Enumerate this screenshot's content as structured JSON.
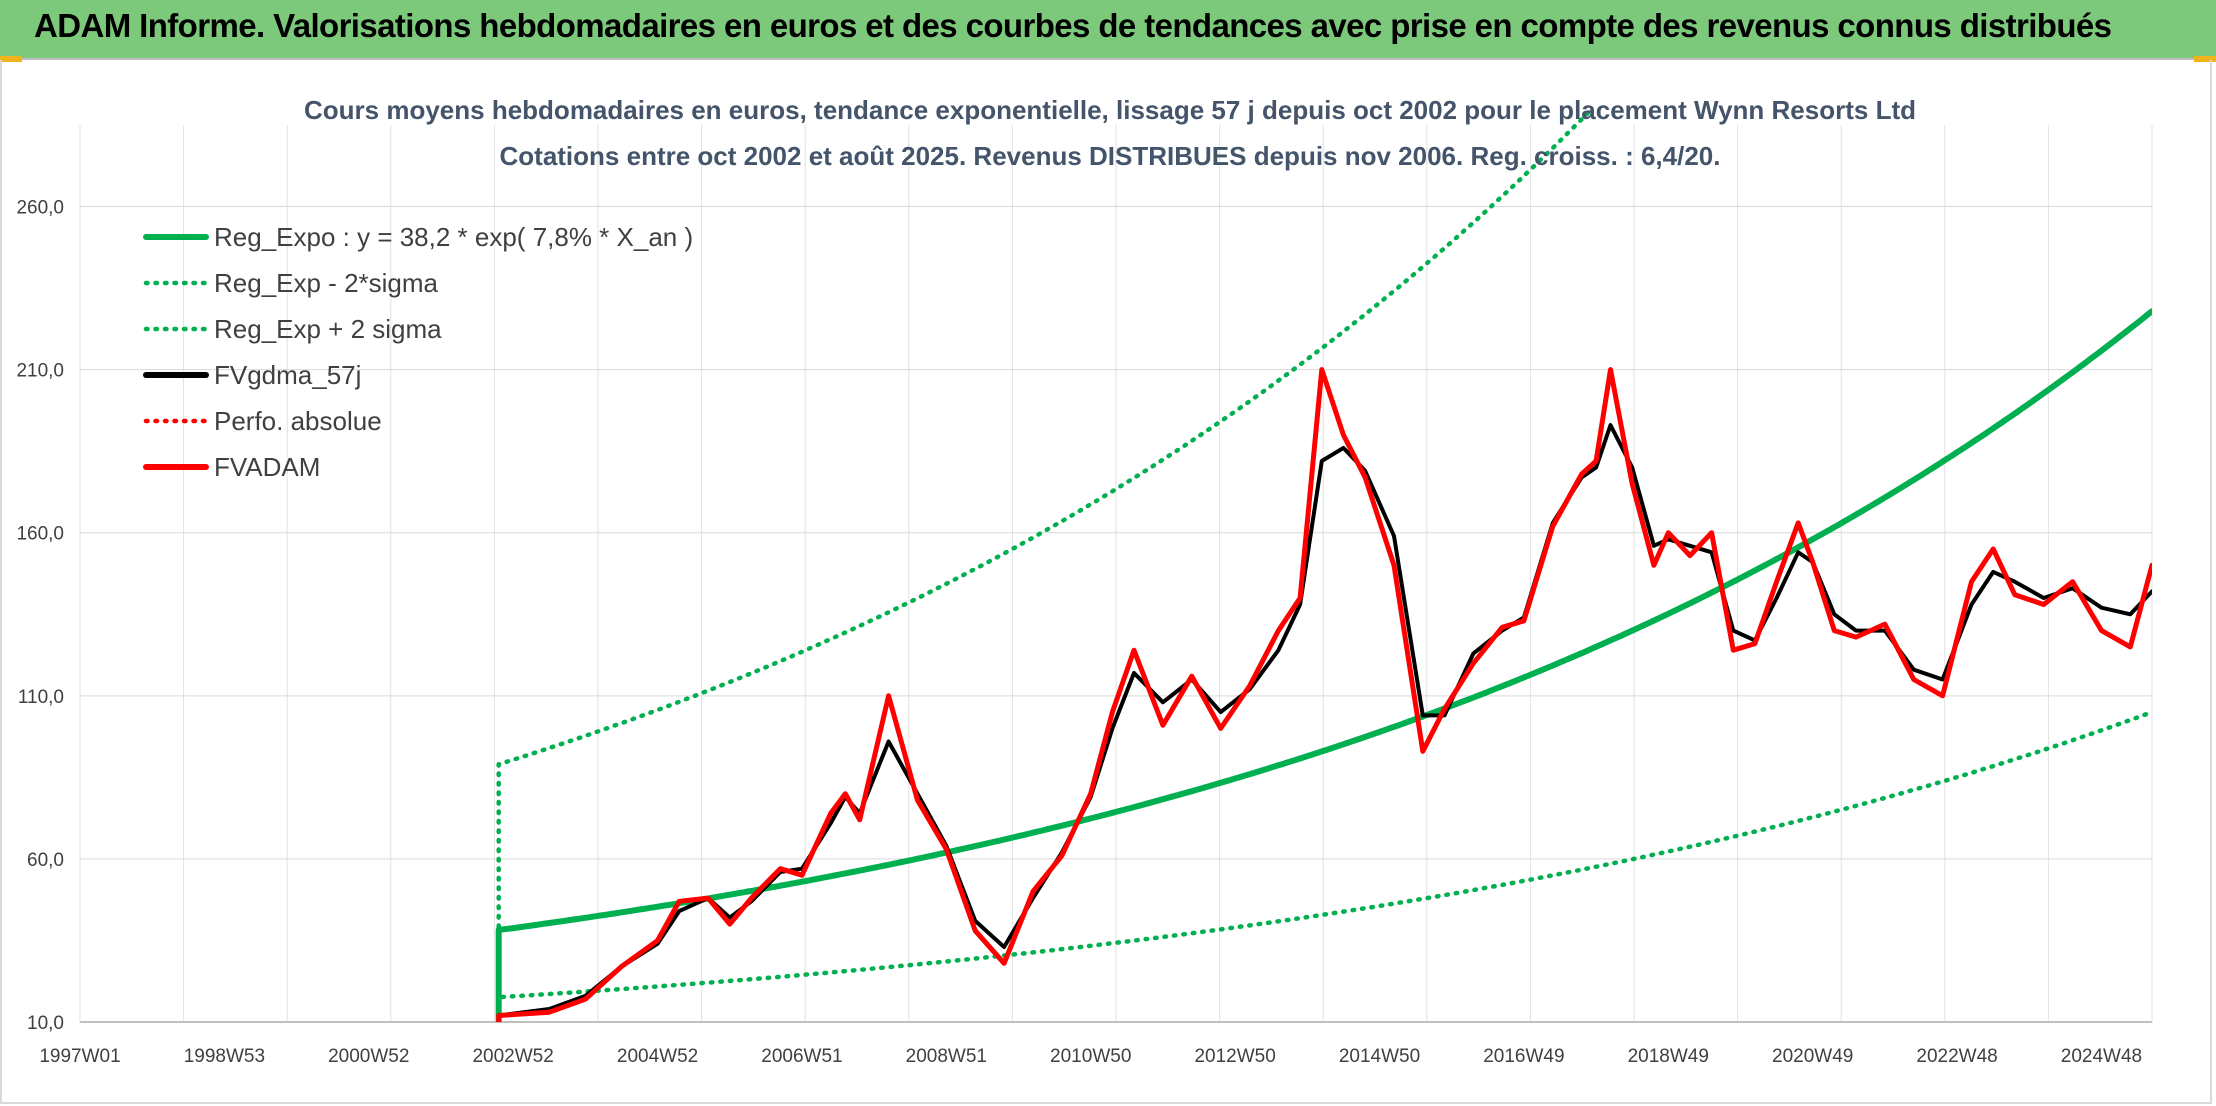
{
  "header": {
    "title": "ADAM Informe. Valorisations hebdomadaires en euros et des courbes de tendances avec prise en compte des revenus connus distribués"
  },
  "colors": {
    "green": "#00b050",
    "black": "#000000",
    "red": "#ff0000",
    "banner": "#7dc97c"
  },
  "chart_data": {
    "type": "line",
    "title": "Cours moyens hebdomadaires en euros, tendance exponentielle, lissage 57 j depuis oct 2002 pour le placement Wynn Resorts Ltd",
    "subtitle": "Cotations entre oct 2002 et août 2025. Revenus DISTRIBUES depuis nov 2006. Reg. croiss. : 6,4/20.",
    "xlabel": "",
    "ylabel": "",
    "xlim": [
      1997.0,
      2025.7
    ],
    "ylim": [
      10,
      285
    ],
    "x_ticks": [
      {
        "label": "1997W01",
        "x": 1997.0
      },
      {
        "label": "1998W53",
        "x": 1999.0
      },
      {
        "label": "2000W52",
        "x": 2001.0
      },
      {
        "label": "2002W52",
        "x": 2003.0
      },
      {
        "label": "2004W52",
        "x": 2005.0
      },
      {
        "label": "2006W51",
        "x": 2007.0
      },
      {
        "label": "2008W51",
        "x": 2009.0
      },
      {
        "label": "2010W50",
        "x": 2011.0
      },
      {
        "label": "2012W50",
        "x": 2013.0
      },
      {
        "label": "2014W50",
        "x": 2015.0
      },
      {
        "label": "2016W49",
        "x": 2017.0
      },
      {
        "label": "2018W49",
        "x": 2019.0
      },
      {
        "label": "2020W49",
        "x": 2021.0
      },
      {
        "label": "2022W48",
        "x": 2023.0
      },
      {
        "label": "2024W48",
        "x": 2025.0
      }
    ],
    "y_ticks": [
      {
        "label": "10,0",
        "v": 10
      },
      {
        "label": "60,0",
        "v": 60
      },
      {
        "label": "110,0",
        "v": 110
      },
      {
        "label": "160,0",
        "v": 160
      },
      {
        "label": "210,0",
        "v": 210
      },
      {
        "label": "260,0",
        "v": 260
      }
    ],
    "grid": true,
    "legend_position": "top-left",
    "series": [
      {
        "name": "Reg_Expo : y = 38,2 * exp( 7,8% *  X_an )",
        "color": "#00b050",
        "style": "solid",
        "kind": "exp",
        "a": 38.2,
        "r": 0.078,
        "x0": 2002.8
      },
      {
        "name": "Reg_Exp - 2*sigma",
        "color": "#00b050",
        "style": "dotted",
        "kind": "exp",
        "a": 17.6,
        "r": 0.078,
        "x0": 2002.8
      },
      {
        "name": "Reg_Exp + 2 sigma",
        "color": "#00b050",
        "style": "dotted",
        "kind": "exp",
        "a": 89.0,
        "r": 0.078,
        "x0": 2002.8
      },
      {
        "name": "FVgdma_57j",
        "color": "#000000",
        "style": "solid",
        "kind": "points",
        "x": [
          2002.8,
          2003.5,
          2004.0,
          2004.5,
          2005.0,
          2005.3,
          2005.7,
          2006.0,
          2006.3,
          2006.7,
          2007.0,
          2007.4,
          2007.6,
          2007.8,
          2008.2,
          2008.6,
          2009.0,
          2009.4,
          2009.8,
          2010.2,
          2010.6,
          2011.0,
          2011.3,
          2011.6,
          2012.0,
          2012.4,
          2012.8,
          2013.2,
          2013.6,
          2013.9,
          2014.2,
          2014.5,
          2014.8,
          2015.2,
          2015.6,
          2015.9,
          2016.3,
          2016.7,
          2017.0,
          2017.4,
          2017.8,
          2018.0,
          2018.2,
          2018.5,
          2018.8,
          2019.0,
          2019.3,
          2019.6,
          2019.9,
          2020.2,
          2020.5,
          2020.8,
          2021.0,
          2021.3,
          2021.6,
          2022.0,
          2022.4,
          2022.8,
          2023.2,
          2023.5,
          2023.8,
          2024.2,
          2024.6,
          2025.0,
          2025.4,
          2025.7
        ],
        "values": [
          12,
          14,
          18,
          27,
          34,
          44,
          48,
          42,
          47,
          56,
          57,
          71,
          79,
          74,
          96,
          80,
          64,
          41,
          33,
          48,
          62,
          79,
          100,
          117,
          108,
          115,
          105,
          112,
          124,
          138,
          182,
          186,
          179,
          159,
          104,
          104,
          123,
          130,
          134,
          163,
          177,
          180,
          193,
          180,
          156,
          158,
          156,
          154,
          130,
          127,
          140,
          154,
          151,
          135,
          130,
          130,
          118,
          115,
          138,
          148,
          145,
          140,
          143,
          137,
          135,
          142
        ]
      },
      {
        "name": "Perfo. absolue",
        "color": "#ff0000",
        "style": "dotted",
        "kind": "points",
        "x": [
          2002.8,
          2003.5,
          2004.0,
          2004.5,
          2005.0,
          2005.3,
          2005.7,
          2006.0,
          2006.3,
          2006.7,
          2007.0,
          2007.4,
          2007.6,
          2007.8,
          2008.2,
          2008.6,
          2009.0,
          2009.4,
          2009.8,
          2010.2,
          2010.6,
          2011.0,
          2011.3,
          2011.6,
          2012.0,
          2012.4,
          2012.8,
          2013.2,
          2013.6,
          2013.9,
          2014.2,
          2014.5,
          2014.8,
          2015.2,
          2015.6,
          2015.9,
          2016.3,
          2016.7,
          2017.0,
          2017.4,
          2017.8,
          2018.0,
          2018.2,
          2018.5,
          2018.8,
          2019.0,
          2019.3,
          2019.6,
          2019.9,
          2020.2,
          2020.5,
          2020.8,
          2021.0,
          2021.3,
          2021.6,
          2022.0,
          2022.4,
          2022.8,
          2023.2,
          2023.5,
          2023.8,
          2024.2,
          2024.6,
          2025.0,
          2025.4,
          2025.7
        ],
        "values": [
          12,
          13,
          17,
          27,
          35,
          47,
          48,
          40,
          48,
          57,
          55,
          74,
          80,
          72,
          110,
          78,
          63,
          38,
          28,
          50,
          61,
          80,
          105,
          124,
          101,
          116,
          100,
          113,
          130,
          140,
          210,
          190,
          177,
          150,
          93,
          106,
          120,
          131,
          133,
          162,
          178,
          182,
          210,
          175,
          150,
          160,
          153,
          160,
          124,
          126,
          145,
          163,
          151,
          130,
          128,
          132,
          115,
          110,
          145,
          155,
          141,
          138,
          145,
          130,
          125,
          150
        ]
      },
      {
        "name": "FVADAM",
        "color": "#ff0000",
        "style": "solid",
        "kind": "points",
        "x": [
          2002.8,
          2003.5,
          2004.0,
          2004.5,
          2005.0,
          2005.3,
          2005.7,
          2006.0,
          2006.3,
          2006.7,
          2007.0,
          2007.4,
          2007.6,
          2007.8,
          2008.2,
          2008.6,
          2009.0,
          2009.4,
          2009.8,
          2010.2,
          2010.6,
          2011.0,
          2011.3,
          2011.6,
          2012.0,
          2012.4,
          2012.8,
          2013.2,
          2013.6,
          2013.9,
          2014.2,
          2014.5,
          2014.8,
          2015.2,
          2015.6,
          2015.9,
          2016.3,
          2016.7,
          2017.0,
          2017.4,
          2017.8,
          2018.0,
          2018.2,
          2018.5,
          2018.8,
          2019.0,
          2019.3,
          2019.6,
          2019.9,
          2020.2,
          2020.5,
          2020.8,
          2021.0,
          2021.3,
          2021.6,
          2022.0,
          2022.4,
          2022.8,
          2023.2,
          2023.5,
          2023.8,
          2024.2,
          2024.6,
          2025.0,
          2025.4,
          2025.7
        ],
        "values": [
          12,
          13,
          17,
          27,
          35,
          47,
          48,
          40,
          48,
          57,
          55,
          74,
          80,
          72,
          110,
          78,
          63,
          38,
          28,
          50,
          61,
          80,
          105,
          124,
          101,
          116,
          100,
          113,
          130,
          140,
          210,
          190,
          177,
          150,
          93,
          106,
          120,
          131,
          133,
          162,
          178,
          182,
          210,
          175,
          150,
          160,
          153,
          160,
          124,
          126,
          145,
          163,
          151,
          130,
          128,
          132,
          115,
          110,
          145,
          155,
          141,
          138,
          145,
          130,
          125,
          150
        ]
      }
    ]
  }
}
